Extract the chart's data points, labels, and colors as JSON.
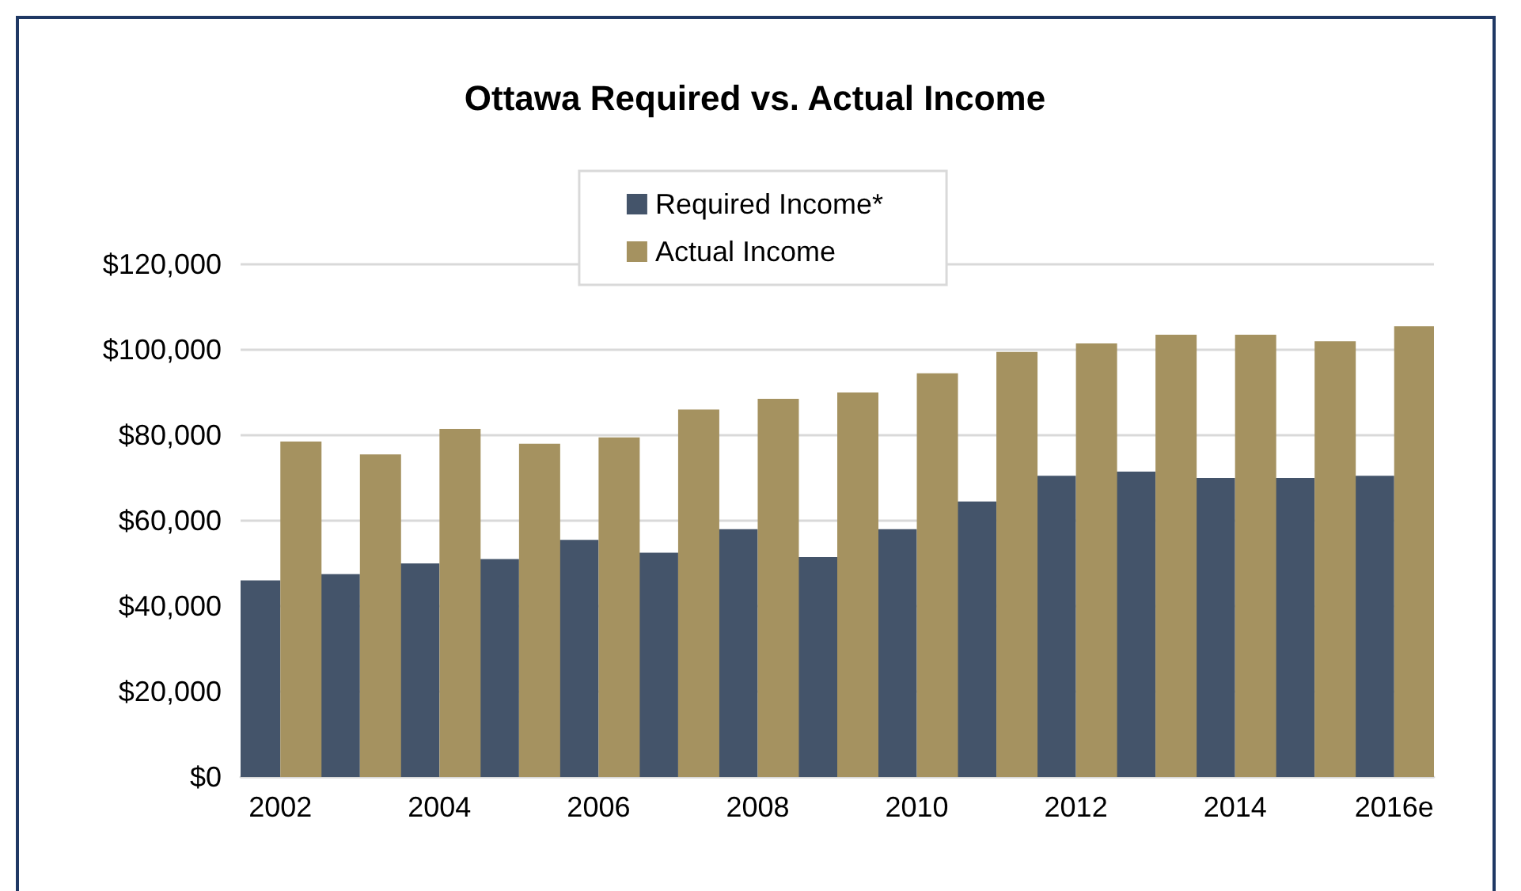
{
  "chart_data": {
    "type": "bar",
    "title": "Ottawa Required vs. Actual Income",
    "categories": [
      "2002",
      null,
      "2004",
      null,
      "2006",
      null,
      "2008",
      null,
      "2010",
      null,
      "2012",
      null,
      "2014",
      null,
      "2016e"
    ],
    "series": [
      {
        "name": "Required Income*",
        "color": "#44546a",
        "values": [
          46000,
          47500,
          50000,
          51000,
          55500,
          52500,
          58000,
          51500,
          58000,
          64500,
          70500,
          71500,
          70000,
          70000,
          70500
        ]
      },
      {
        "name": "Actual Income",
        "color": "#a59260",
        "values": [
          78500,
          75500,
          81500,
          78000,
          79500,
          86000,
          88500,
          90000,
          94500,
          99500,
          101500,
          103500,
          103500,
          102000,
          105500
        ]
      }
    ],
    "ylim": [
      0,
      120000
    ],
    "yticks": [
      {
        "value": 0,
        "label": "$0"
      },
      {
        "value": 20000,
        "label": "$20,000"
      },
      {
        "value": 40000,
        "label": "$40,000"
      },
      {
        "value": 60000,
        "label": "$60,000"
      },
      {
        "value": 80000,
        "label": "$80,000"
      },
      {
        "value": 100000,
        "label": "$100,000"
      },
      {
        "value": 120000,
        "label": "$120,000"
      }
    ],
    "grid": "y",
    "legend": "top"
  }
}
